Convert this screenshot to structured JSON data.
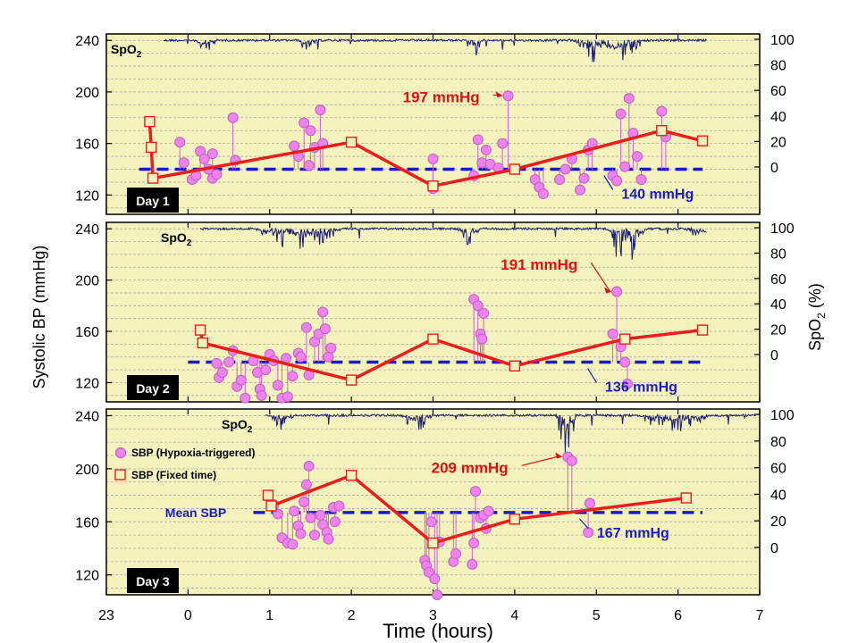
{
  "chart_data": {
    "type": "line",
    "xlabel": "Time (hours)",
    "ylabel_left": "Systolic BP (mmHg)",
    "ylabel_right_main": "SpO",
    "ylabel_right_sub": "2",
    "ylabel_right_tail": " (%)",
    "x_ticks": [
      "23",
      "0",
      "1",
      "2",
      "3",
      "4",
      "5",
      "6",
      "7"
    ],
    "x_range": [
      -1,
      7
    ],
    "y_left_ticks": [
      "120",
      "160",
      "200",
      "240"
    ],
    "y_left_range": [
      105,
      245
    ],
    "y_right_ticks": [
      "0",
      "20",
      "40",
      "60",
      "80",
      "100"
    ],
    "grid": true,
    "legend": {
      "position": "upper-left (day 3 panel)",
      "items": [
        {
          "label": "SBP (Hypoxia-triggered)",
          "marker": "circle"
        },
        {
          "label": "SBP (Fixed time)",
          "marker": "square"
        },
        {
          "label": "Mean SBP",
          "marker": "dashed-line"
        }
      ]
    },
    "colors": {
      "background": "#f5f3bd",
      "hypoxia_marker_fill": "#ee82ee",
      "hypoxia_marker_stroke": "#c060c0",
      "fixed_line": "#ee1c1c",
      "mean_line": "#1a1acc",
      "spo2_line": "#1a1a6e"
    },
    "panels": [
      {
        "day_label": "Day 1",
        "spo2_label": "SpO",
        "spo2_sub": "2",
        "mean_sbp": 140,
        "mean_label": "140 mmHg",
        "peak_label": "197 mmHg",
        "peak": [
          3.92,
          197
        ],
        "fixed_time_sbp": [
          [
            -0.47,
            177
          ],
          [
            -0.45,
            157
          ],
          [
            -0.43,
            133
          ],
          [
            2.0,
            161
          ],
          [
            3.0,
            127
          ],
          [
            4.0,
            140
          ],
          [
            5.8,
            170
          ],
          [
            6.3,
            162
          ]
        ],
        "hypoxia_sbp": [
          [
            -0.1,
            161
          ],
          [
            -0.05,
            145
          ],
          [
            0.05,
            132
          ],
          [
            0.1,
            135
          ],
          [
            0.15,
            154
          ],
          [
            0.2,
            148
          ],
          [
            0.25,
            140
          ],
          [
            0.3,
            152
          ],
          [
            0.3,
            133
          ],
          [
            0.35,
            136
          ],
          [
            0.55,
            180
          ],
          [
            0.58,
            147
          ],
          [
            1.3,
            158
          ],
          [
            1.35,
            150
          ],
          [
            1.42,
            176
          ],
          [
            1.48,
            143
          ],
          [
            1.5,
            170
          ],
          [
            1.55,
            157
          ],
          [
            1.62,
            186
          ],
          [
            1.65,
            160
          ],
          [
            3.0,
            148
          ],
          [
            3.0,
            125
          ],
          [
            3.5,
            135
          ],
          [
            3.55,
            163
          ],
          [
            3.6,
            145
          ],
          [
            3.65,
            155
          ],
          [
            3.7,
            144
          ],
          [
            3.8,
            141
          ],
          [
            3.85,
            160
          ],
          [
            3.92,
            197
          ],
          [
            4.25,
            132
          ],
          [
            4.3,
            126
          ],
          [
            4.35,
            121
          ],
          [
            4.55,
            132
          ],
          [
            4.62,
            140
          ],
          [
            4.7,
            148
          ],
          [
            4.8,
            124
          ],
          [
            4.85,
            133
          ],
          [
            4.9,
            155
          ],
          [
            4.95,
            160
          ],
          [
            5.2,
            135
          ],
          [
            5.25,
            131
          ],
          [
            5.3,
            183
          ],
          [
            5.35,
            142
          ],
          [
            5.4,
            195
          ],
          [
            5.45,
            168
          ],
          [
            5.5,
            150
          ],
          [
            5.55,
            132
          ],
          [
            5.8,
            185
          ],
          [
            5.85,
            165
          ]
        ]
      },
      {
        "day_label": "Day 2",
        "spo2_label": "SpO",
        "spo2_sub": "2",
        "mean_sbp": 136,
        "mean_label": "136 mmHg",
        "peak_label": "191 mmHg",
        "peak": [
          5.25,
          191
        ],
        "fixed_time_sbp": [
          [
            0.15,
            161
          ],
          [
            0.18,
            151
          ],
          [
            2.0,
            122
          ],
          [
            3.0,
            154
          ],
          [
            4.0,
            133
          ],
          [
            5.35,
            154
          ],
          [
            6.3,
            161
          ]
        ],
        "hypoxia_sbp": [
          [
            0.35,
            135
          ],
          [
            0.38,
            124
          ],
          [
            0.42,
            128
          ],
          [
            0.5,
            136
          ],
          [
            0.55,
            145
          ],
          [
            0.6,
            117
          ],
          [
            0.65,
            122
          ],
          [
            0.7,
            108
          ],
          [
            0.8,
            137
          ],
          [
            0.85,
            128
          ],
          [
            0.88,
            115
          ],
          [
            0.9,
            110
          ],
          [
            0.95,
            130
          ],
          [
            1.0,
            142
          ],
          [
            1.05,
            137
          ],
          [
            1.1,
            118
          ],
          [
            1.15,
            108
          ],
          [
            1.2,
            139
          ],
          [
            1.22,
            109
          ],
          [
            1.28,
            125
          ],
          [
            1.35,
            143
          ],
          [
            1.38,
            140
          ],
          [
            1.45,
            163
          ],
          [
            1.48,
            126
          ],
          [
            1.55,
            152
          ],
          [
            1.6,
            158
          ],
          [
            1.65,
            175
          ],
          [
            1.68,
            162
          ],
          [
            1.72,
            140
          ],
          [
            1.75,
            147
          ],
          [
            3.5,
            185
          ],
          [
            3.55,
            180
          ],
          [
            3.58,
            158
          ],
          [
            3.6,
            154
          ],
          [
            3.62,
            174
          ],
          [
            5.2,
            158
          ],
          [
            5.25,
            191
          ],
          [
            5.3,
            148
          ],
          [
            5.35,
            136
          ],
          [
            5.38,
            119
          ]
        ]
      },
      {
        "day_label": "Day 3",
        "spo2_label": "SpO",
        "spo2_sub": "2",
        "mean_sbp": 167,
        "mean_label": "167 mmHg",
        "mean_series_label": "Mean SBP",
        "peak_label": "209 mmHg",
        "peak": [
          4.65,
          209
        ],
        "fixed_time_sbp": [
          [
            0.98,
            180
          ],
          [
            1.02,
            172
          ],
          [
            2.0,
            195
          ],
          [
            3.0,
            144
          ],
          [
            4.0,
            162
          ],
          [
            6.1,
            178
          ]
        ],
        "hypoxia_sbp": [
          [
            1.05,
            173
          ],
          [
            1.1,
            166
          ],
          [
            1.15,
            148
          ],
          [
            1.22,
            144
          ],
          [
            1.28,
            143
          ],
          [
            1.3,
            168
          ],
          [
            1.35,
            157
          ],
          [
            1.38,
            151
          ],
          [
            1.42,
            175
          ],
          [
            1.45,
            188
          ],
          [
            1.48,
            202
          ],
          [
            1.5,
            163
          ],
          [
            1.55,
            150
          ],
          [
            1.62,
            165
          ],
          [
            1.65,
            158
          ],
          [
            1.7,
            152
          ],
          [
            1.72,
            147
          ],
          [
            1.78,
            171
          ],
          [
            1.8,
            160
          ],
          [
            1.85,
            172
          ],
          [
            2.9,
            131
          ],
          [
            2.92,
            127
          ],
          [
            2.95,
            122
          ],
          [
            2.98,
            160
          ],
          [
            3.02,
            117
          ],
          [
            3.05,
            105
          ],
          [
            3.08,
            145
          ],
          [
            3.25,
            130
          ],
          [
            3.28,
            136
          ],
          [
            3.48,
            128
          ],
          [
            3.5,
            144
          ],
          [
            3.52,
            183
          ],
          [
            3.58,
            163
          ],
          [
            3.62,
            165
          ],
          [
            3.65,
            155
          ],
          [
            3.68,
            168
          ],
          [
            4.65,
            209
          ],
          [
            4.7,
            206
          ],
          [
            4.9,
            152
          ],
          [
            4.92,
            174
          ]
        ]
      }
    ]
  }
}
